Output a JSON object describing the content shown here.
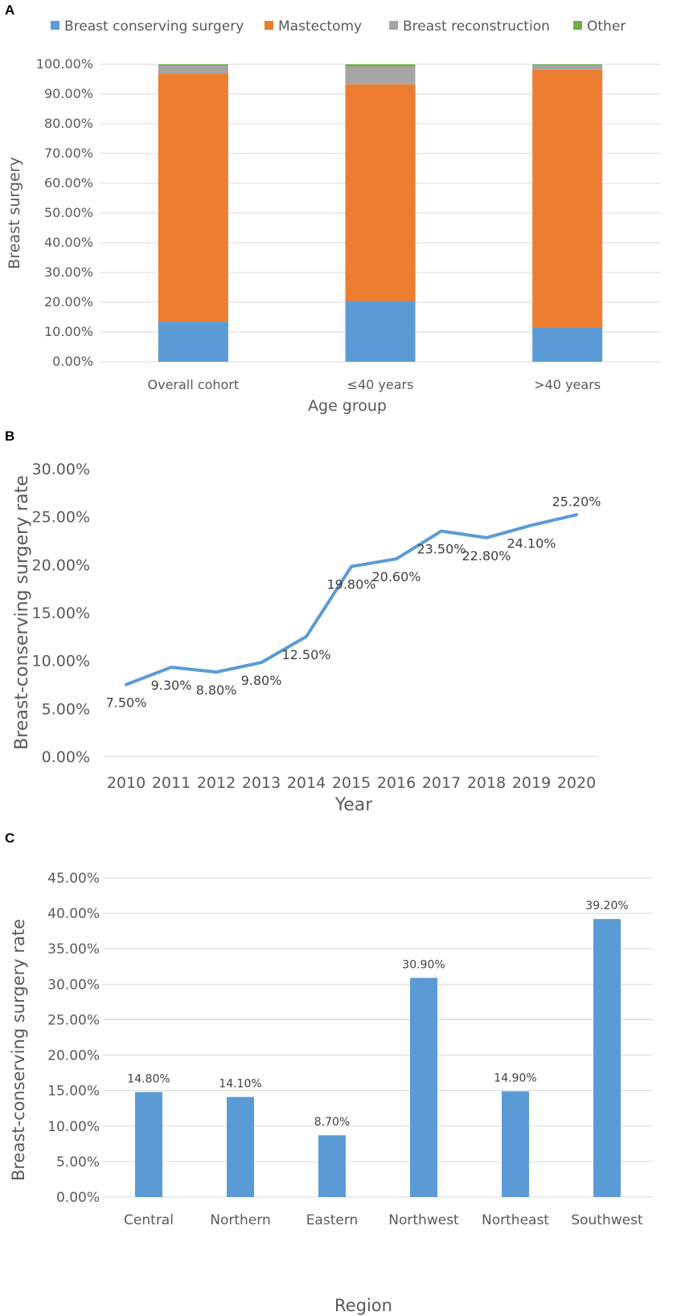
{
  "chart_data": [
    {
      "panel": "A",
      "type": "bar",
      "stacked": true,
      "title": "",
      "xlabel": "Age group",
      "ylabel": "Breast surgery",
      "ylim": [
        0,
        100
      ],
      "yticks": [
        "0.00%",
        "10.00%",
        "20.00%",
        "30.00%",
        "40.00%",
        "50.00%",
        "60.00%",
        "70.00%",
        "80.00%",
        "90.00%",
        "100.00%"
      ],
      "categories": [
        "Overall cohort",
        "≤40 years",
        ">40 years"
      ],
      "series": [
        {
          "name": "Breast conserving surgery",
          "color": "#5b9bd5",
          "values": [
            13.5,
            20.4,
            11.6
          ]
        },
        {
          "name": "Mastectomy",
          "color": "#ed7d31",
          "values": [
            83.5,
            72.9,
            86.6
          ]
        },
        {
          "name": "Breast reconstruction",
          "color": "#a5a5a5",
          "values": [
            2.5,
            6.0,
            1.5
          ]
        },
        {
          "name": "Other",
          "color": "#70ad47",
          "values": [
            0.5,
            0.7,
            0.3
          ]
        }
      ],
      "legend_position": "top"
    },
    {
      "panel": "B",
      "type": "line",
      "title": "",
      "xlabel": "Year",
      "ylabel": "Breast-conserving surgery rate",
      "ylim": [
        0,
        30
      ],
      "yticks": [
        "0.00%",
        "5.00%",
        "10.00%",
        "15.00%",
        "20.00%",
        "25.00%",
        "30.00%"
      ],
      "x": [
        "2010",
        "2011",
        "2012",
        "2013",
        "2014",
        "2015",
        "2016",
        "2017",
        "2018",
        "2019",
        "2020"
      ],
      "series": [
        {
          "name": "Breast-conserving surgery rate",
          "color": "#5b9bd5",
          "values": [
            7.5,
            9.3,
            8.8,
            9.8,
            12.5,
            19.8,
            20.6,
            23.5,
            22.8,
            24.1,
            25.2
          ],
          "labels": [
            "7.50%",
            "9.30%",
            "8.80%",
            "9.80%",
            "12.50%",
            "19.80%",
            "20.60%",
            "23.50%",
            "22.80%",
            "24.10%",
            "25.20%"
          ]
        }
      ]
    },
    {
      "panel": "C",
      "type": "bar",
      "title": "",
      "xlabel": "Region",
      "ylabel": "Breast-conserving  surgery rate",
      "ylim": [
        0,
        45
      ],
      "yticks": [
        "0.00%",
        "5.00%",
        "10.00%",
        "15.00%",
        "20.00%",
        "25.00%",
        "30.00%",
        "35.00%",
        "40.00%",
        "45.00%"
      ],
      "categories": [
        "Central",
        "Northern",
        "Eastern",
        "Northwest",
        "Northeast",
        "Southwest"
      ],
      "series": [
        {
          "name": "Breast-conserving surgery rate",
          "color": "#5b9bd5",
          "values": [
            14.8,
            14.1,
            8.7,
            30.9,
            14.9,
            39.2
          ],
          "labels": [
            "14.80%",
            "14.10%",
            "8.70%",
            "30.90%",
            "14.90%",
            "39.20%"
          ]
        }
      ]
    }
  ]
}
